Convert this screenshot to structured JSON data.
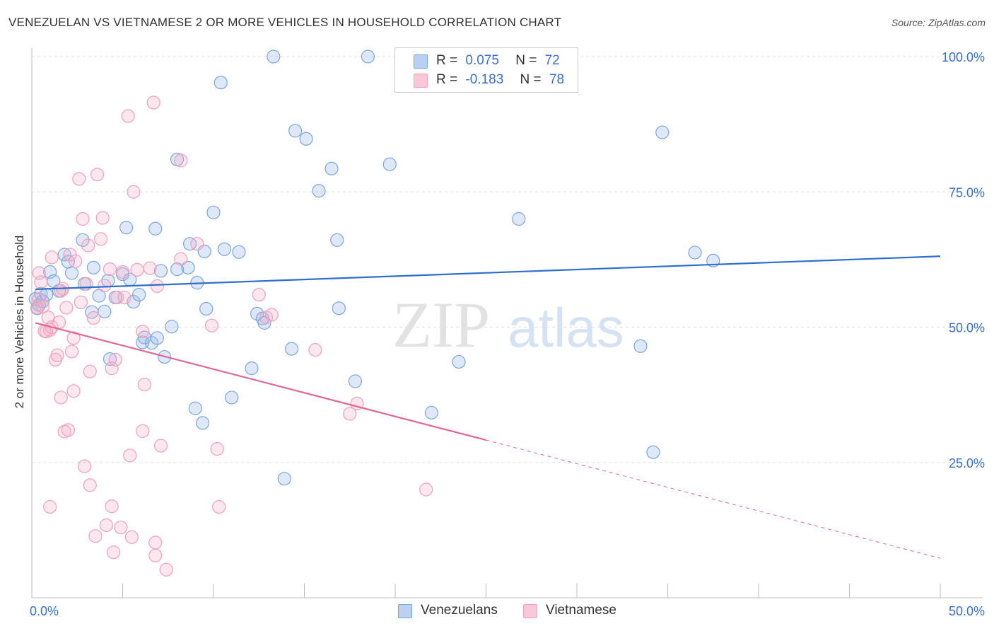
{
  "chart_data": {
    "type": "scatter",
    "title": "VENEZUELAN VS VIETNAMESE 2 OR MORE VEHICLES IN HOUSEHOLD CORRELATION CHART",
    "source": "Source: ZipAtlas.com",
    "xlabel": "",
    "ylabel": "2 or more Vehicles in Household",
    "xlim": [
      0,
      50
    ],
    "ylim": [
      0,
      100
    ],
    "x_tick_labels": [
      "0.0%",
      "50.0%"
    ],
    "y_ticks": [
      25,
      50,
      75,
      100
    ],
    "y_tick_labels": [
      "25.0%",
      "50.0%",
      "75.0%",
      "100.0%"
    ],
    "grid": true,
    "watermark": "ZIPatlas",
    "legend": {
      "entries": [
        {
          "series": "Venezuelans",
          "r_label": "R =",
          "r_value": "0.075",
          "n_label": "N =",
          "n_value": "72"
        },
        {
          "series": "Vietnamese",
          "r_label": "R =",
          "r_value": "-0.183",
          "n_label": "N =",
          "n_value": "78"
        }
      ]
    },
    "series": [
      {
        "name": "Venezuelans",
        "color": "#7aa6e0",
        "line_color": "#2f6fcc",
        "trend": {
          "x0": 0.2,
          "y0": 57.0,
          "x1": 50.0,
          "y1": 63.1,
          "dashed_from": null
        },
        "points": [
          [
            0.2,
            55.2
          ],
          [
            0.3,
            53.5
          ],
          [
            0.4,
            54.1
          ],
          [
            0.5,
            56.2
          ],
          [
            0.6,
            54.8
          ],
          [
            0.8,
            56.0
          ],
          [
            1.0,
            60.2
          ],
          [
            1.2,
            58.5
          ],
          [
            1.5,
            56.7
          ],
          [
            1.8,
            63.4
          ],
          [
            2.0,
            62.1
          ],
          [
            2.2,
            60.0
          ],
          [
            2.8,
            66.1
          ],
          [
            2.9,
            58.0
          ],
          [
            3.3,
            52.8
          ],
          [
            3.4,
            61.0
          ],
          [
            3.7,
            55.8
          ],
          [
            4.0,
            52.9
          ],
          [
            4.2,
            58.6
          ],
          [
            4.3,
            44.1
          ],
          [
            4.6,
            55.5
          ],
          [
            5.0,
            59.8
          ],
          [
            5.2,
            68.4
          ],
          [
            5.4,
            58.8
          ],
          [
            5.6,
            54.7
          ],
          [
            5.9,
            56.0
          ],
          [
            6.1,
            47.2
          ],
          [
            6.2,
            48.1
          ],
          [
            6.6,
            47.1
          ],
          [
            6.8,
            68.2
          ],
          [
            6.9,
            48.0
          ],
          [
            7.1,
            60.4
          ],
          [
            7.3,
            44.5
          ],
          [
            7.7,
            50.1
          ],
          [
            8.0,
            60.7
          ],
          [
            8.0,
            81.0
          ],
          [
            8.6,
            61.0
          ],
          [
            8.7,
            65.4
          ],
          [
            9.0,
            35.0
          ],
          [
            9.1,
            58.2
          ],
          [
            9.4,
            32.3
          ],
          [
            9.5,
            64.0
          ],
          [
            9.6,
            53.4
          ],
          [
            10.0,
            71.2
          ],
          [
            10.4,
            95.2
          ],
          [
            10.6,
            64.4
          ],
          [
            11.0,
            37.0
          ],
          [
            11.4,
            63.9
          ],
          [
            12.1,
            42.4
          ],
          [
            12.4,
            52.5
          ],
          [
            12.7,
            51.6
          ],
          [
            12.8,
            50.8
          ],
          [
            13.3,
            100.0
          ],
          [
            13.9,
            22.0
          ],
          [
            14.3,
            46.0
          ],
          [
            14.5,
            86.3
          ],
          [
            15.1,
            84.8
          ],
          [
            15.8,
            75.2
          ],
          [
            16.5,
            79.3
          ],
          [
            16.8,
            66.1
          ],
          [
            16.9,
            53.5
          ],
          [
            17.8,
            40.0
          ],
          [
            18.5,
            100.0
          ],
          [
            19.7,
            80.1
          ],
          [
            22.0,
            34.2
          ],
          [
            23.5,
            43.6
          ],
          [
            33.5,
            46.5
          ],
          [
            34.2,
            26.9
          ],
          [
            34.7,
            86.0
          ],
          [
            36.5,
            63.8
          ],
          [
            37.5,
            62.3
          ],
          [
            26.8,
            70.0
          ]
        ]
      },
      {
        "name": "Vietnamese",
        "color": "#f0a0b8",
        "line_color": "#e06894",
        "trend": {
          "x0": 0.2,
          "y0": 50.8,
          "x1": 50.0,
          "y1": 7.3,
          "dashed_from": 25.0
        },
        "points": [
          [
            0.3,
            53.6
          ],
          [
            0.4,
            55.2
          ],
          [
            0.5,
            58.3
          ],
          [
            0.6,
            53.8
          ],
          [
            0.7,
            49.3
          ],
          [
            0.9,
            51.8
          ],
          [
            1.0,
            49.5
          ],
          [
            1.0,
            16.8
          ],
          [
            1.1,
            50.0
          ],
          [
            1.1,
            62.9
          ],
          [
            1.3,
            44.0
          ],
          [
            1.4,
            44.8
          ],
          [
            1.6,
            56.7
          ],
          [
            1.6,
            37.0
          ],
          [
            1.8,
            30.7
          ],
          [
            1.9,
            53.6
          ],
          [
            2.0,
            31.0
          ],
          [
            2.1,
            63.4
          ],
          [
            2.2,
            45.5
          ],
          [
            2.3,
            38.2
          ],
          [
            2.4,
            62.2
          ],
          [
            2.6,
            77.4
          ],
          [
            2.7,
            54.6
          ],
          [
            2.8,
            70.0
          ],
          [
            2.9,
            24.3
          ],
          [
            3.0,
            58.0
          ],
          [
            3.1,
            65.1
          ],
          [
            3.2,
            20.8
          ],
          [
            3.2,
            41.8
          ],
          [
            3.4,
            51.7
          ],
          [
            3.5,
            11.4
          ],
          [
            3.6,
            78.2
          ],
          [
            3.8,
            66.3
          ],
          [
            3.9,
            70.2
          ],
          [
            4.1,
            13.4
          ],
          [
            4.3,
            60.7
          ],
          [
            4.4,
            42.4
          ],
          [
            4.4,
            16.9
          ],
          [
            4.5,
            8.4
          ],
          [
            4.6,
            44.0
          ],
          [
            4.7,
            55.5
          ],
          [
            4.9,
            13.0
          ],
          [
            5.0,
            60.2
          ],
          [
            5.3,
            89.0
          ],
          [
            5.4,
            26.3
          ],
          [
            5.5,
            11.2
          ],
          [
            5.6,
            75.0
          ],
          [
            5.8,
            60.6
          ],
          [
            6.1,
            49.2
          ],
          [
            6.1,
            30.8
          ],
          [
            6.2,
            39.4
          ],
          [
            6.5,
            60.9
          ],
          [
            6.7,
            91.5
          ],
          [
            6.8,
            10.2
          ],
          [
            6.8,
            7.8
          ],
          [
            6.9,
            57.6
          ],
          [
            7.1,
            28.1
          ],
          [
            7.4,
            5.2
          ],
          [
            8.2,
            62.6
          ],
          [
            8.2,
            80.8
          ],
          [
            9.1,
            65.4
          ],
          [
            9.9,
            50.3
          ],
          [
            10.2,
            27.5
          ],
          [
            10.3,
            16.8
          ],
          [
            12.5,
            56.0
          ],
          [
            12.9,
            51.8
          ],
          [
            13.2,
            52.3
          ],
          [
            15.6,
            45.8
          ],
          [
            17.5,
            34.0
          ],
          [
            17.9,
            35.9
          ],
          [
            21.7,
            20.0
          ],
          [
            1.7,
            57.1
          ],
          [
            0.8,
            49.2
          ],
          [
            2.3,
            48.0
          ],
          [
            1.5,
            50.9
          ],
          [
            4.0,
            57.7
          ],
          [
            5.1,
            55.5
          ],
          [
            0.4,
            60.0
          ]
        ]
      }
    ]
  }
}
